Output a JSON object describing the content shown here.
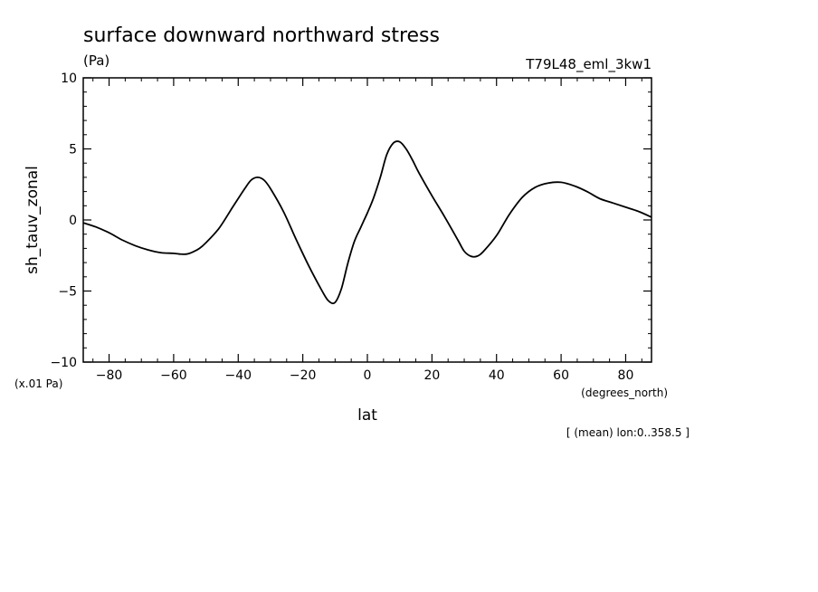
{
  "chart_data": {
    "type": "line",
    "title": "surface downward northward stress",
    "units": "(Pa)",
    "run_label": "T79L48_eml_3kw1",
    "ylabel": "sh_tauv_zonal",
    "xlabel": "lat",
    "x_units": "(degrees_north)",
    "y_scale_note": "(x.01 Pa)",
    "footnote": "[ (mean) lon:0..358.5 ]",
    "xlim": [
      -88,
      88
    ],
    "ylim": [
      -10,
      10
    ],
    "x_ticks": [
      -80,
      -60,
      -40,
      -20,
      0,
      20,
      40,
      60,
      80
    ],
    "x_tick_labels": [
      "−80",
      "−60",
      "−40",
      "−20",
      "0",
      "20",
      "40",
      "60",
      "80"
    ],
    "y_ticks": [
      -10,
      -5,
      0,
      5,
      10
    ],
    "y_tick_labels": [
      "−10",
      "−5",
      "0",
      "5",
      "10"
    ],
    "grid": false,
    "series": [
      {
        "x": [
          -88,
          -84,
          -80,
          -76,
          -72,
          -68,
          -64,
          -60,
          -58,
          -56,
          -54,
          -52,
          -50,
          -46,
          -42,
          -38,
          -36,
          -34,
          -32,
          -30,
          -26,
          -22,
          -18,
          -14,
          -12,
          -10,
          -8,
          -6,
          -4,
          -2,
          0,
          2,
          4,
          6,
          8,
          10,
          12,
          14,
          16,
          20,
          24,
          28,
          30,
          32,
          34,
          36,
          40,
          44,
          48,
          52,
          56,
          60,
          64,
          68,
          72,
          76,
          80,
          84,
          88
        ],
        "y": [
          -0.2,
          -0.5,
          -0.9,
          -1.4,
          -1.8,
          -2.1,
          -2.3,
          -2.35,
          -2.4,
          -2.4,
          -2.25,
          -2.0,
          -1.6,
          -0.6,
          0.8,
          2.2,
          2.8,
          3.0,
          2.8,
          2.2,
          0.6,
          -1.4,
          -3.3,
          -5.0,
          -5.7,
          -5.8,
          -4.8,
          -3.0,
          -1.5,
          -0.5,
          0.5,
          1.6,
          3.0,
          4.6,
          5.4,
          5.5,
          5.0,
          4.2,
          3.3,
          1.7,
          0.2,
          -1.4,
          -2.2,
          -2.55,
          -2.55,
          -2.2,
          -1.1,
          0.4,
          1.6,
          2.3,
          2.6,
          2.65,
          2.4,
          2.0,
          1.5,
          1.2,
          0.9,
          0.6,
          0.2
        ]
      }
    ]
  }
}
